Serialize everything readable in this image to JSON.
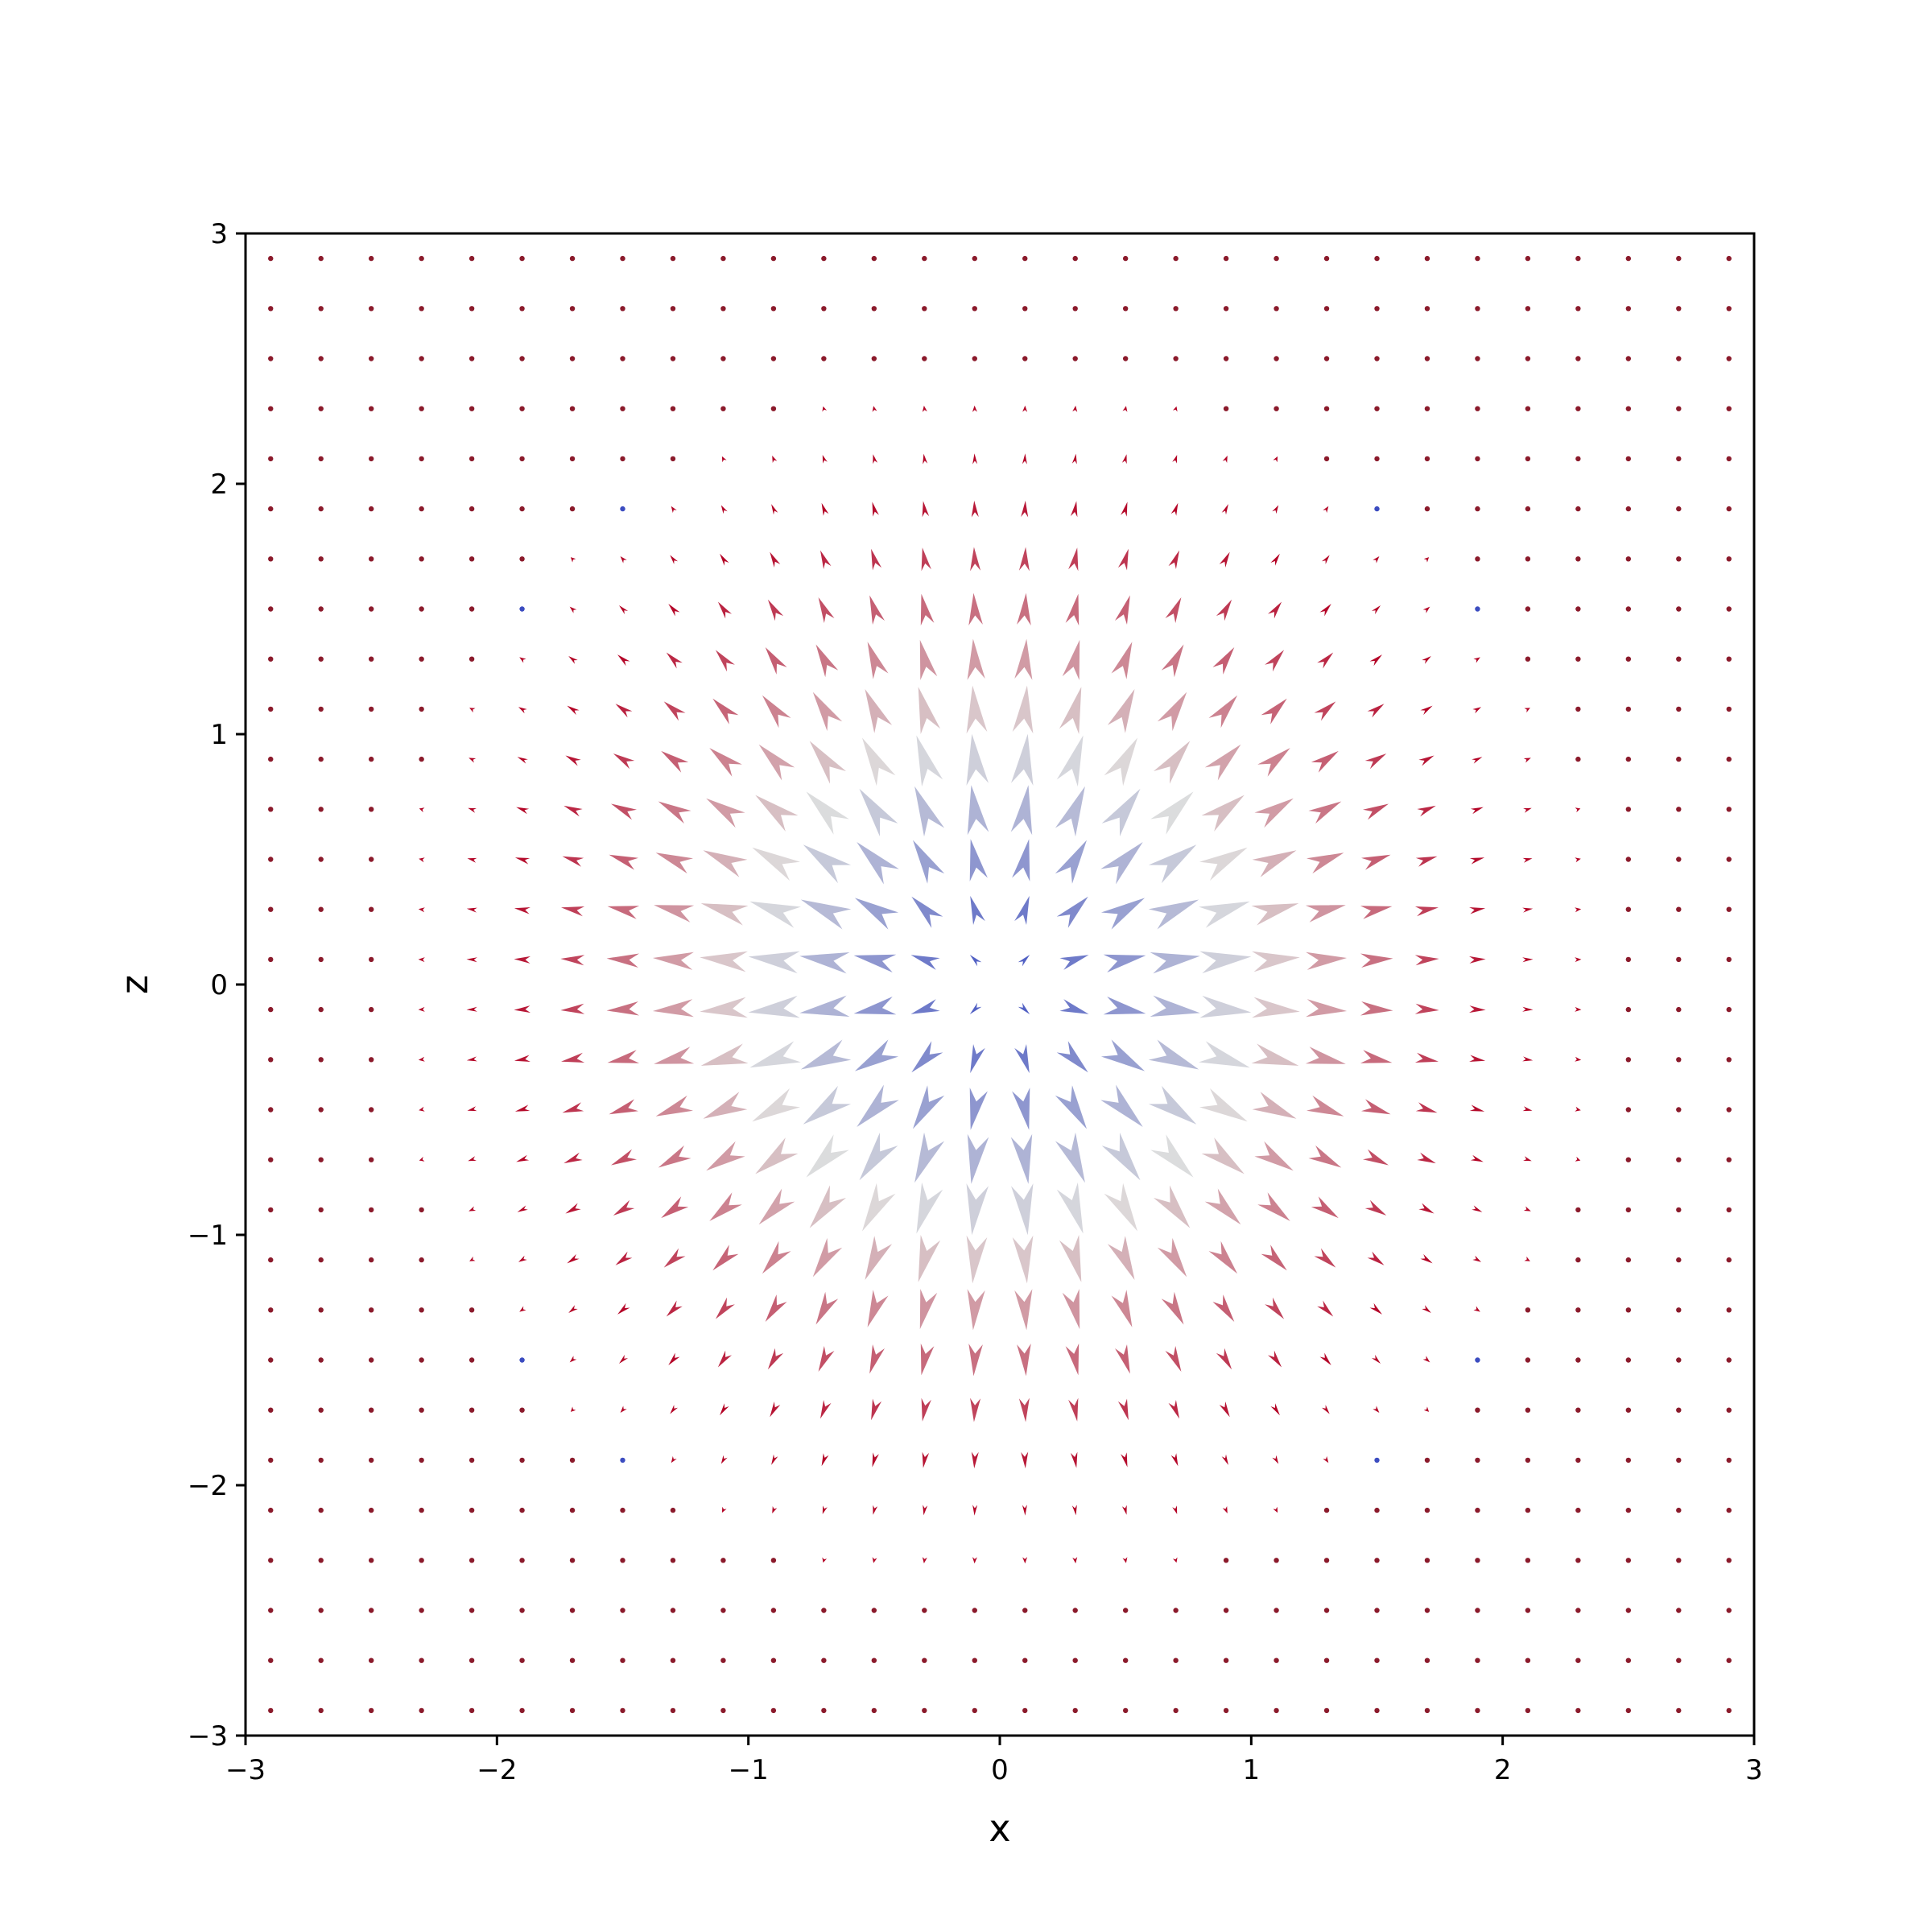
{
  "chart_data": {
    "type": "quiver",
    "title": "",
    "xlabel": "x",
    "ylabel": "z",
    "xlim": [
      -3,
      3
    ],
    "ylim": [
      -3,
      3
    ],
    "xticks": [
      -3,
      -2,
      -1,
      0,
      1,
      2,
      3
    ],
    "yticks": [
      -3,
      -2,
      -1,
      0,
      1,
      2,
      3
    ],
    "xtick_labels": [
      "−3",
      "−2",
      "−1",
      "0",
      "1",
      "2",
      "3"
    ],
    "ytick_labels": [
      "−3",
      "−2",
      "−1",
      "0",
      "1",
      "2",
      "3"
    ],
    "grid": false,
    "legend": "none",
    "field": {
      "description_formula": "radially outward vectors, magnitude peaks in a ring and decays to ~0 beyond r≈2.4 and at the origin",
      "grid_count": 30,
      "grid_start": -2.9,
      "grid_step": 0.2,
      "colormap": "coolwarm",
      "color_low": "#3b4cc0",
      "color_mid": "#dddddd",
      "color_high": "#b40426",
      "color_far": "#8b1a2b"
    }
  }
}
